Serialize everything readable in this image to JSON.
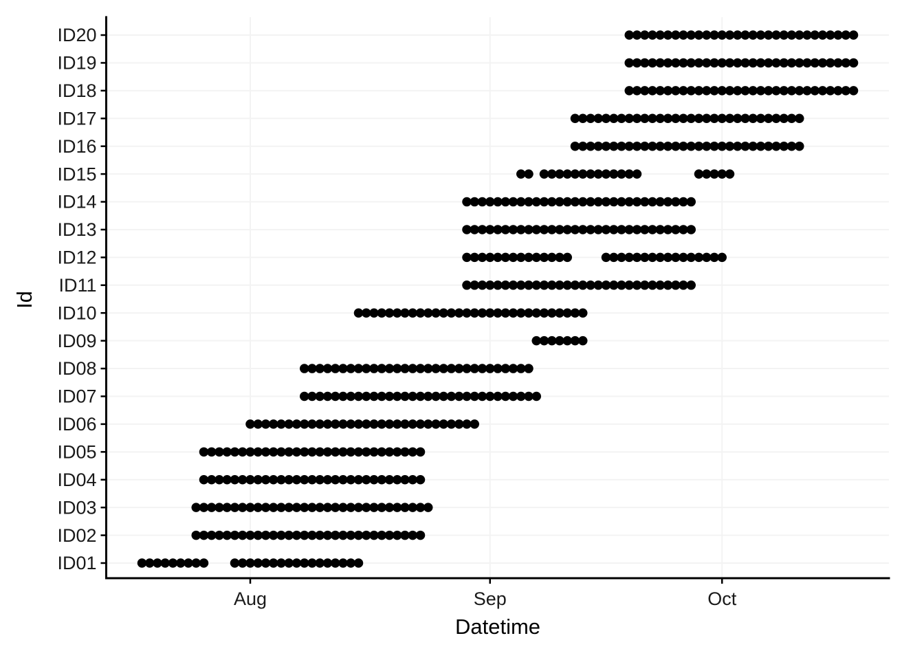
{
  "chart_data": {
    "type": "scatter",
    "subtype": "daily-presence-dot-timeline",
    "title": "",
    "xlabel": "Datetime",
    "ylabel": "Id",
    "background_color": "#ffffff",
    "dot_color": "#000000",
    "grid_color": "#f3f3f3",
    "axis_color": "#000000",
    "legend": "none",
    "grid": "major gridlines only (light gray): vertical at month ticks, horizontal at each Id row",
    "x_axis": {
      "tick_labels": [
        "Aug",
        "Sep",
        "Oct"
      ],
      "tick_day_offsets": [
        0,
        31,
        61
      ],
      "day_offset_origin": "Aug 1 = day 0 (negative = July)",
      "visible_range_days": [
        -18.6,
        82.6
      ],
      "note": "each dot represents one day of data presence"
    },
    "y_categories": [
      "ID01",
      "ID02",
      "ID03",
      "ID04",
      "ID05",
      "ID06",
      "ID07",
      "ID08",
      "ID09",
      "ID10",
      "ID11",
      "ID12",
      "ID13",
      "ID14",
      "ID15",
      "ID16",
      "ID17",
      "ID18",
      "ID19",
      "ID20"
    ],
    "series": [
      {
        "id": "ID01",
        "segments": [
          {
            "start_day": -14,
            "end_day": -6,
            "start_date": "Jul 18",
            "end_date": "Jul 26"
          },
          {
            "start_day": -2,
            "end_day": 14,
            "start_date": "Jul 30",
            "end_date": "Aug 15"
          }
        ]
      },
      {
        "id": "ID02",
        "segments": [
          {
            "start_day": -7,
            "end_day": 22,
            "start_date": "Jul 25",
            "end_date": "Aug 23"
          }
        ]
      },
      {
        "id": "ID03",
        "segments": [
          {
            "start_day": -7,
            "end_day": 23,
            "start_date": "Jul 25",
            "end_date": "Aug 24"
          }
        ]
      },
      {
        "id": "ID04",
        "segments": [
          {
            "start_day": -6,
            "end_day": 22,
            "start_date": "Jul 26",
            "end_date": "Aug 23"
          }
        ]
      },
      {
        "id": "ID05",
        "segments": [
          {
            "start_day": -6,
            "end_day": 22,
            "start_date": "Jul 26",
            "end_date": "Aug 23"
          }
        ]
      },
      {
        "id": "ID06",
        "segments": [
          {
            "start_day": 0,
            "end_day": 29,
            "start_date": "Aug 1",
            "end_date": "Aug 30"
          }
        ]
      },
      {
        "id": "ID07",
        "segments": [
          {
            "start_day": 7,
            "end_day": 37,
            "start_date": "Aug 8",
            "end_date": "Sep 7"
          }
        ]
      },
      {
        "id": "ID08",
        "segments": [
          {
            "start_day": 7,
            "end_day": 36,
            "start_date": "Aug 8",
            "end_date": "Sep 6"
          }
        ]
      },
      {
        "id": "ID09",
        "segments": [
          {
            "start_day": 37,
            "end_day": 43,
            "start_date": "Sep 7",
            "end_date": "Sep 13"
          }
        ]
      },
      {
        "id": "ID10",
        "segments": [
          {
            "start_day": 14,
            "end_day": 43,
            "start_date": "Aug 15",
            "end_date": "Sep 13"
          }
        ]
      },
      {
        "id": "ID11",
        "segments": [
          {
            "start_day": 28,
            "end_day": 57,
            "start_date": "Aug 29",
            "end_date": "Sep 27"
          }
        ]
      },
      {
        "id": "ID12",
        "segments": [
          {
            "start_day": 28,
            "end_day": 41,
            "start_date": "Aug 29",
            "end_date": "Sep 11"
          },
          {
            "start_day": 46,
            "end_day": 61,
            "start_date": "Sep 16",
            "end_date": "Oct 1"
          }
        ]
      },
      {
        "id": "ID13",
        "segments": [
          {
            "start_day": 28,
            "end_day": 57,
            "start_date": "Aug 29",
            "end_date": "Sep 27"
          }
        ]
      },
      {
        "id": "ID14",
        "segments": [
          {
            "start_day": 28,
            "end_day": 57,
            "start_date": "Aug 29",
            "end_date": "Sep 27"
          }
        ]
      },
      {
        "id": "ID15",
        "segments": [
          {
            "start_day": 35,
            "end_day": 36,
            "start_date": "Sep 5",
            "end_date": "Sep 6"
          },
          {
            "start_day": 38,
            "end_day": 50,
            "start_date": "Sep 8",
            "end_date": "Sep 20"
          },
          {
            "start_day": 58,
            "end_day": 62,
            "start_date": "Sep 28",
            "end_date": "Oct 2"
          }
        ]
      },
      {
        "id": "ID16",
        "segments": [
          {
            "start_day": 42,
            "end_day": 71,
            "start_date": "Sep 12",
            "end_date": "Oct 11"
          }
        ]
      },
      {
        "id": "ID17",
        "segments": [
          {
            "start_day": 42,
            "end_day": 71,
            "start_date": "Sep 12",
            "end_date": "Oct 11"
          }
        ]
      },
      {
        "id": "ID18",
        "segments": [
          {
            "start_day": 49,
            "end_day": 78,
            "start_date": "Sep 19",
            "end_date": "Oct 18"
          }
        ]
      },
      {
        "id": "ID19",
        "segments": [
          {
            "start_day": 49,
            "end_day": 78,
            "start_date": "Sep 19",
            "end_date": "Oct 18"
          }
        ]
      },
      {
        "id": "ID20",
        "segments": [
          {
            "start_day": 49,
            "end_day": 78,
            "start_date": "Sep 19",
            "end_date": "Oct 18"
          }
        ]
      }
    ]
  }
}
